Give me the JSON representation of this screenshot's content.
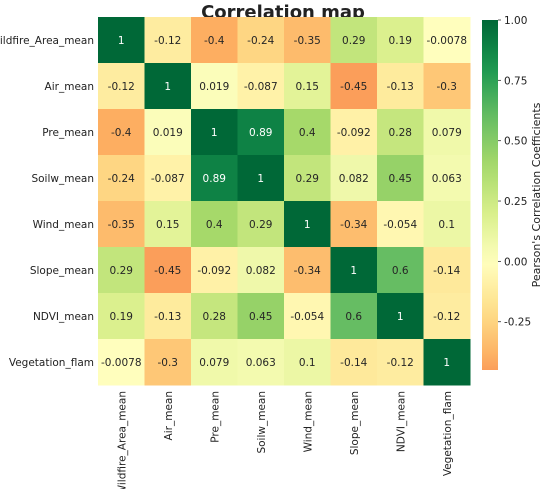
{
  "chart_data": {
    "type": "heatmap",
    "title": "Correlation map",
    "variables": [
      "Wildfire_Area_mean",
      "Air_mean",
      "Pre_mean",
      "Soilw_mean",
      "Wind_mean",
      "Slope_mean",
      "NDVI_mean",
      "Vegetation_flam"
    ],
    "values": [
      [
        1,
        -0.12,
        -0.4,
        -0.24,
        -0.35,
        0.29,
        0.19,
        -0.0078
      ],
      [
        -0.12,
        1,
        0.019,
        -0.087,
        0.15,
        -0.45,
        -0.13,
        -0.3
      ],
      [
        -0.4,
        0.019,
        1,
        0.89,
        0.4,
        -0.092,
        0.28,
        0.079
      ],
      [
        -0.24,
        -0.087,
        0.89,
        1,
        0.29,
        0.082,
        0.45,
        0.063
      ],
      [
        -0.35,
        0.15,
        0.4,
        0.29,
        1,
        -0.34,
        -0.054,
        0.1
      ],
      [
        0.29,
        -0.45,
        -0.092,
        0.082,
        -0.34,
        1,
        0.6,
        -0.14
      ],
      [
        0.19,
        -0.13,
        0.28,
        0.45,
        -0.054,
        0.6,
        1,
        -0.12
      ],
      [
        -0.0078,
        -0.3,
        0.079,
        0.063,
        0.1,
        -0.14,
        -0.12,
        1
      ]
    ],
    "colorbar": {
      "label": "Pearson's Correlation Coefficients",
      "range": [
        -0.45,
        1.0
      ],
      "ticks": [
        "1.00",
        "0.75",
        "0.50",
        "0.25",
        "0.00",
        "-0.25"
      ],
      "colormap": "RdYlGn",
      "center": 0
    }
  }
}
